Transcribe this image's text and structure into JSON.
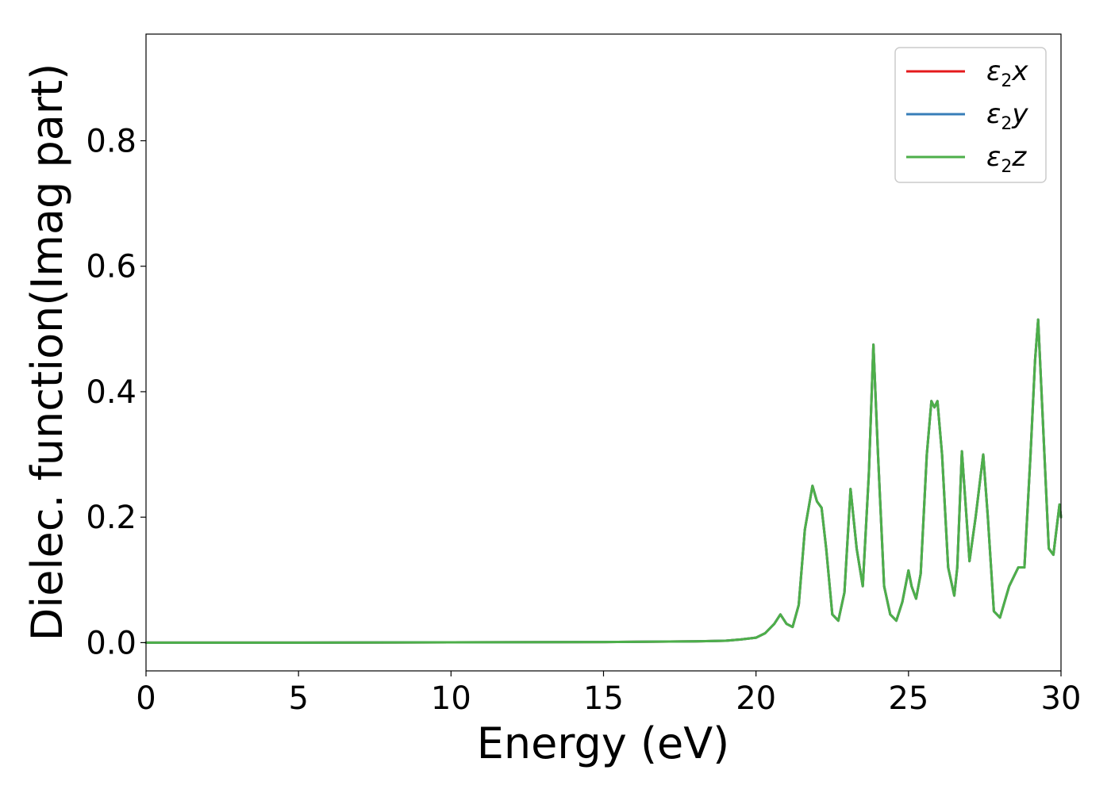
{
  "chart_data": {
    "type": "line",
    "title": "",
    "xlabel": "Energy (eV)",
    "ylabel": "Dielec. function(Imag part)",
    "xlim": [
      0,
      30
    ],
    "ylim": [
      -0.045,
      0.97
    ],
    "xticks": [
      0,
      5,
      10,
      15,
      20,
      25,
      30
    ],
    "xtick_labels": [
      "0",
      "5",
      "10",
      "15",
      "20",
      "25",
      "30"
    ],
    "yticks": [
      0.0,
      0.2,
      0.4,
      0.6,
      0.8
    ],
    "ytick_labels": [
      "0.0",
      "0.2",
      "0.4",
      "0.6",
      "0.8"
    ],
    "grid": false,
    "legend_position": "top-right",
    "x": [
      0,
      5,
      10,
      15,
      18,
      19,
      19.5,
      20,
      20.3,
      20.6,
      20.8,
      21.0,
      21.2,
      21.4,
      21.6,
      21.85,
      22.0,
      22.15,
      22.3,
      22.5,
      22.7,
      22.9,
      23.1,
      23.3,
      23.5,
      23.7,
      23.85,
      24.0,
      24.2,
      24.4,
      24.6,
      24.8,
      25.0,
      25.1,
      25.25,
      25.4,
      25.6,
      25.75,
      25.85,
      25.95,
      26.1,
      26.3,
      26.5,
      26.6,
      26.75,
      26.9,
      27.0,
      27.2,
      27.45,
      27.6,
      27.8,
      28.0,
      28.3,
      28.6,
      28.8,
      29.0,
      29.15,
      29.25,
      29.4,
      29.6,
      29.75,
      29.95,
      30.0
    ],
    "series": [
      {
        "name": "ε2x",
        "color": "#e41a1c",
        "values": [
          0,
          0,
          0.0005,
          0.001,
          0.002,
          0.003,
          0.005,
          0.008,
          0.015,
          0.03,
          0.045,
          0.03,
          0.025,
          0.06,
          0.18,
          0.25,
          0.225,
          0.215,
          0.15,
          0.045,
          0.035,
          0.08,
          0.245,
          0.15,
          0.09,
          0.27,
          0.475,
          0.3,
          0.09,
          0.045,
          0.035,
          0.065,
          0.115,
          0.09,
          0.07,
          0.11,
          0.3,
          0.385,
          0.375,
          0.385,
          0.3,
          0.12,
          0.075,
          0.12,
          0.305,
          0.2,
          0.13,
          0.2,
          0.3,
          0.2,
          0.05,
          0.04,
          0.09,
          0.12,
          0.12,
          0.3,
          0.45,
          0.515,
          0.36,
          0.15,
          0.14,
          0.22,
          0.2
        ]
      },
      {
        "name": "ε2y",
        "color": "#377eb8",
        "values": [
          0,
          0,
          0.0005,
          0.001,
          0.002,
          0.003,
          0.005,
          0.008,
          0.015,
          0.03,
          0.045,
          0.03,
          0.025,
          0.06,
          0.18,
          0.25,
          0.225,
          0.215,
          0.15,
          0.045,
          0.035,
          0.08,
          0.245,
          0.15,
          0.09,
          0.27,
          0.475,
          0.3,
          0.09,
          0.045,
          0.035,
          0.065,
          0.115,
          0.09,
          0.07,
          0.11,
          0.3,
          0.385,
          0.375,
          0.385,
          0.3,
          0.12,
          0.075,
          0.12,
          0.305,
          0.2,
          0.13,
          0.2,
          0.3,
          0.2,
          0.05,
          0.04,
          0.09,
          0.12,
          0.12,
          0.3,
          0.45,
          0.515,
          0.36,
          0.15,
          0.14,
          0.22,
          0.2
        ]
      },
      {
        "name": "ε2z",
        "color": "#4daf4a",
        "values": [
          0,
          0,
          0.0005,
          0.001,
          0.002,
          0.003,
          0.005,
          0.008,
          0.015,
          0.03,
          0.045,
          0.03,
          0.025,
          0.06,
          0.18,
          0.25,
          0.225,
          0.215,
          0.15,
          0.045,
          0.035,
          0.08,
          0.245,
          0.15,
          0.09,
          0.27,
          0.475,
          0.3,
          0.09,
          0.045,
          0.035,
          0.065,
          0.115,
          0.09,
          0.07,
          0.11,
          0.3,
          0.385,
          0.375,
          0.385,
          0.3,
          0.12,
          0.075,
          0.12,
          0.305,
          0.2,
          0.13,
          0.2,
          0.3,
          0.2,
          0.05,
          0.04,
          0.09,
          0.12,
          0.12,
          0.3,
          0.45,
          0.515,
          0.36,
          0.15,
          0.14,
          0.22,
          0.2
        ]
      }
    ],
    "legend": [
      {
        "symbol": "ε",
        "sub": "2",
        "axis": "x"
      },
      {
        "symbol": "ε",
        "sub": "2",
        "axis": "y"
      },
      {
        "symbol": "ε",
        "sub": "2",
        "axis": "z"
      }
    ]
  }
}
